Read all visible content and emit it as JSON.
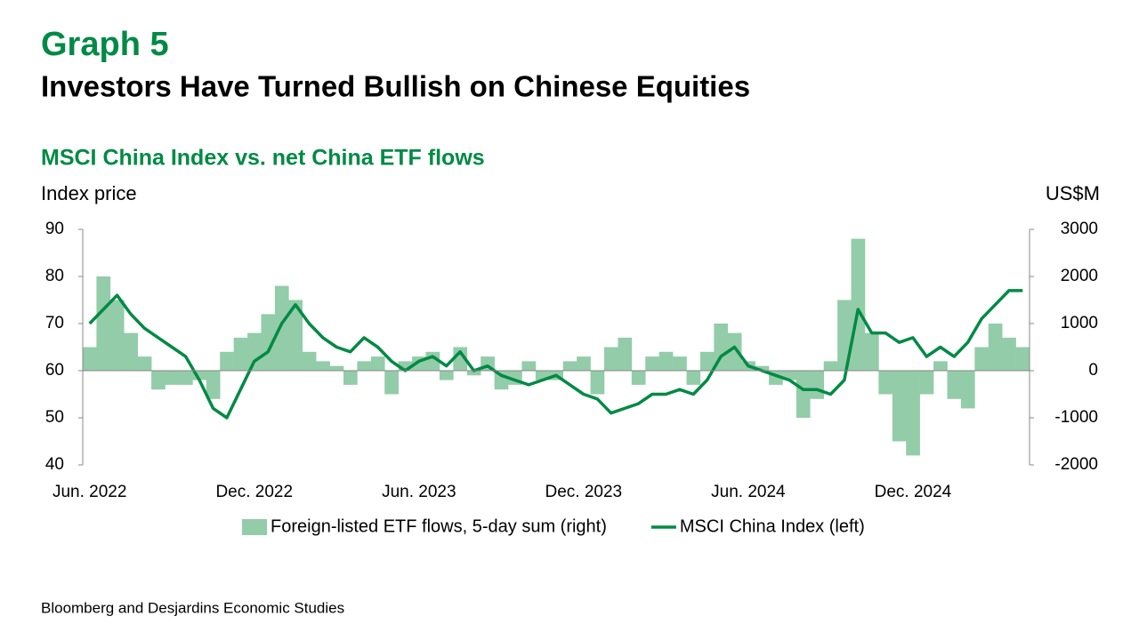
{
  "header": {
    "graph": "Graph 5",
    "title": "Investors Have Turned Bullish on Chinese Equities"
  },
  "chart_data": {
    "type": "bar-line",
    "title": "MSCI China Index vs. net China ETF flows",
    "y_label": "Index price",
    "y2_label": "US$M",
    "categories": [
      "Jun. 2022",
      null,
      null,
      null,
      null,
      null,
      null,
      null,
      null,
      null,
      null,
      null,
      "Dec. 2022",
      null,
      null,
      null,
      null,
      null,
      null,
      null,
      null,
      null,
      null,
      null,
      "Jun. 2023",
      null,
      null,
      null,
      null,
      null,
      null,
      null,
      null,
      null,
      null,
      null,
      "Dec. 2023",
      null,
      null,
      null,
      null,
      null,
      null,
      null,
      null,
      null,
      null,
      null,
      "Jun. 2024",
      null,
      null,
      null,
      null,
      null,
      null,
      null,
      null,
      null,
      null,
      null,
      "Dec. 2024",
      null,
      null,
      null,
      null,
      null,
      null,
      null,
      null
    ],
    "series": [
      {
        "name": "Foreign-listed ETF flows, 5-day sum (right)",
        "type": "bar",
        "axis": "y2",
        "color": "#93cca9",
        "values": [
          500,
          2000,
          1500,
          800,
          300,
          -400,
          -300,
          -300,
          -200,
          -600,
          400,
          700,
          800,
          1200,
          1800,
          1500,
          400,
          200,
          100,
          -300,
          200,
          300,
          -500,
          200,
          300,
          400,
          -200,
          500,
          -100,
          300,
          -400,
          -300,
          200,
          -200,
          -200,
          200,
          300,
          -500,
          500,
          700,
          -300,
          300,
          400,
          300,
          -300,
          400,
          1000,
          800,
          200,
          100,
          -300,
          -200,
          -1000,
          -600,
          200,
          1500,
          2800,
          800,
          -500,
          -1500,
          -1800,
          -500,
          200,
          -600,
          -800,
          500,
          1000,
          700,
          500
        ]
      },
      {
        "name": "MSCI China Index (left)",
        "type": "line",
        "axis": "y",
        "color": "#008a45",
        "values": [
          70,
          73,
          76,
          72,
          69,
          67,
          65,
          63,
          58,
          52,
          50,
          56,
          62,
          64,
          70,
          74,
          70,
          67,
          65,
          64,
          67,
          65,
          62,
          60,
          62,
          63,
          61,
          64,
          60,
          61,
          59,
          58,
          57,
          58,
          59,
          57,
          55,
          54,
          51,
          52,
          53,
          55,
          55,
          56,
          55,
          58,
          63,
          65,
          61,
          60,
          59,
          58,
          56,
          56,
          55,
          58,
          73,
          68,
          68,
          66,
          67,
          63,
          65,
          63,
          66,
          71,
          74,
          77,
          77
        ]
      }
    ],
    "ylim": [
      40,
      90
    ],
    "yticks": [
      40,
      50,
      60,
      70,
      80,
      90
    ],
    "y2lim": [
      -2000,
      3000
    ],
    "y2ticks": [
      -2000,
      -1000,
      0,
      1000,
      2000,
      3000
    ],
    "legend": "bottom"
  },
  "footer": {
    "source": "Bloomberg and Desjardins Economic Studies"
  }
}
